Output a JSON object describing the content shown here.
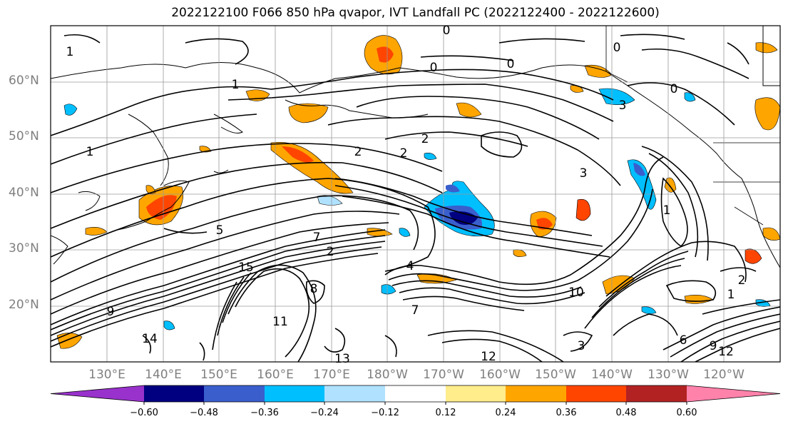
{
  "title": "2022122100 F066 850 hPa qvapor, IVT Landfall PC (2022122400 - 2022122600)",
  "lat_labels": [
    "60°N",
    "50°N",
    "40°N",
    "30°N",
    "20°N"
  ],
  "lon_labels": [
    "130°E",
    "140°E",
    "150°E",
    "160°E",
    "170°E",
    "180°W",
    "170°W",
    "160°W",
    "150°W",
    "140°W",
    "130°W",
    "120°W"
  ],
  "colorbar": {
    "ticks": [
      "−0.60",
      "−0.48",
      "−0.36",
      "−0.24",
      "−0.12",
      "0.12",
      "0.24",
      "0.36",
      "0.48",
      "0.60"
    ],
    "colors": [
      "#9932cc",
      "#000080",
      "#3a5fcd",
      "#00bfff",
      "#b0e2ff",
      "#ffffff",
      "#ffec8b",
      "#ffa500",
      "#ff4500",
      "#b22222",
      "#ff82ab"
    ]
  },
  "contour_labels": [
    "0",
    "0",
    "0",
    "0",
    "0",
    "1",
    "1",
    "1",
    "1",
    "1",
    "2",
    "2",
    "2",
    "2",
    "2",
    "3",
    "3",
    "3",
    "4",
    "5",
    "6",
    "7",
    "7",
    "8",
    "9",
    "9",
    "10",
    "11",
    "12",
    "12",
    "13",
    "14",
    "15"
  ]
}
